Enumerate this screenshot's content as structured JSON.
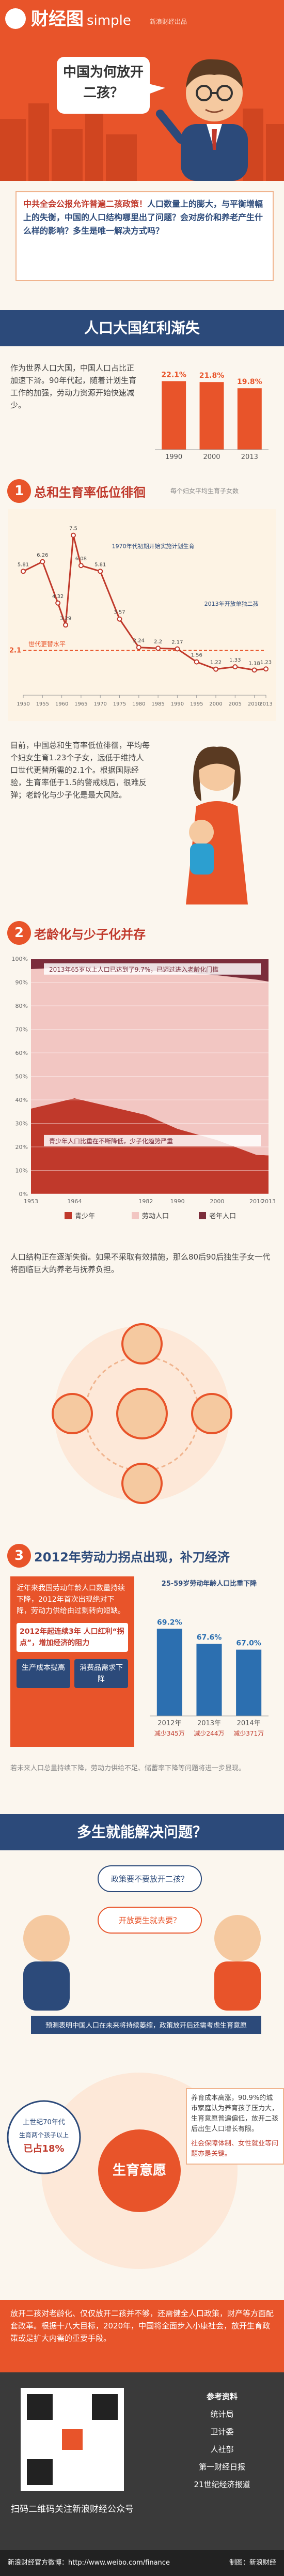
{
  "header": {
    "logo": "财经图",
    "logo_suffix": "simple",
    "producer": "新浪财经出品",
    "bubble": "中国为何放开二孩？"
  },
  "intro": {
    "lead": "中共全会公报允许普遍二孩政策！",
    "body": "人口数量上的膨大，与平衡增幅上的失衡，中国的人口结构哪里出了问题？会对房价和养老产生什么样的影响？多生是唯一解决方式吗？"
  },
  "banner1": "人口大国红利渐失",
  "share": {
    "text": "作为世界人口大国，中国人口占比正加速下滑。90年代起，随着计划生育工作的加强，劳动力资源开始快速减少。",
    "categories": [
      "1990",
      "2000",
      "2013"
    ],
    "values": [
      22.1,
      21.8,
      19.8
    ],
    "value_labels": [
      "22.1%",
      "21.8%",
      "19.8%"
    ],
    "color": "#e8542a",
    "ylim": [
      0,
      25
    ]
  },
  "section1": {
    "number": "1",
    "title": "总和生育率低位徘徊",
    "note": "每个妇女平均生育子女数"
  },
  "fertility": {
    "x": [
      1950,
      1955,
      1959,
      1961,
      1963,
      1965,
      1970,
      1975,
      1980,
      1985,
      1990,
      1995,
      2000,
      2005,
      2010,
      2013
    ],
    "values": [
      5.81,
      6.26,
      4.32,
      3.29,
      7.5,
      6.08,
      5.81,
      3.57,
      2.24,
      2.2,
      2.17,
      1.56,
      1.22,
      1.33,
      1.18,
      1.23
    ],
    "color": "#c0392b",
    "xlim": [
      1950,
      2013
    ],
    "ylim": [
      0,
      8
    ],
    "xticks": [
      1950,
      1955,
      1960,
      1965,
      1970,
      1975,
      1980,
      1985,
      1990,
      1995,
      2000,
      2005,
      2010,
      2013
    ],
    "replacement": 2.1,
    "replacement_label": "世代更替水平",
    "annotations": [
      "1970年代初期开始实施计划生育",
      "2013年开放单独二孩"
    ]
  },
  "fertility_text": "目前，中国总和生育率低位徘徊，平均每个妇女生育1.23个子女，远低于维持人口世代更替所需的2.1个。根据国际经验，生育率低于1.5的警戒线后，很难反弹；老龄化与少子化是最大风险。",
  "section2": {
    "number": "2",
    "title": "老龄化与少子化并存"
  },
  "age": {
    "x": [
      1953,
      1964,
      1982,
      1990,
      2000,
      2010,
      2013
    ],
    "xlim": [
      1953,
      2013
    ],
    "ylim": [
      0,
      100
    ],
    "yticks": [
      {
        "value": 0,
        "label": "0%"
      },
      {
        "value": 10,
        "label": "10%"
      },
      {
        "value": 20,
        "label": "20%"
      },
      {
        "value": 30,
        "label": "30%"
      },
      {
        "value": 40,
        "label": "40%"
      },
      {
        "value": 50,
        "label": "50%"
      },
      {
        "value": 60,
        "label": "60%"
      },
      {
        "value": 70,
        "label": "70%"
      },
      {
        "value": 80,
        "label": "80%"
      },
      {
        "value": 90,
        "label": "90%"
      },
      {
        "value": 100,
        "label": "100%"
      }
    ],
    "series": [
      {
        "name": "青少年",
        "color": "#c0392b",
        "values": [
          36.3,
          40.7,
          33.6,
          27.7,
          22.9,
          16.6,
          16.4
        ]
      },
      {
        "name": "劳动人口",
        "color": "#f2c6c2",
        "values": [
          59.3,
          55.8,
          61.5,
          66.7,
          70.1,
          74.5,
          73.9
        ]
      },
      {
        "name": "老年人口",
        "color": "#7b2d3b",
        "values": [
          4.4,
          3.5,
          4.9,
          5.6,
          7.0,
          8.9,
          9.7
        ]
      }
    ],
    "annotations": [
      "2013年65岁以上人口已达到了9.7%，已迈过进入老龄化门槛",
      "青少年人口比重在不断降低，少子化趋势严重"
    ]
  },
  "age_text": "人口结构正在逐渐失衡。如果不采取有效措施，那么80后90后独生子女一代将面临巨大的养老与抚养负担。",
  "section3": {
    "number": "3",
    "title": "2012年劳动力拐点出现，补刀经济"
  },
  "labor": {
    "text": "近年来我国劳动年龄人口数量持续下降，2012年首次出现绝对下降，劳动力供给由过剩转向短缺。",
    "highlight": "2012年起连续3年 人口红利“拐点”，增加经济的阻力",
    "effects": [
      "生产成本提高",
      "消费品需求下降"
    ],
    "subtitle": "25-59岁劳动年龄人口比重下降",
    "categories": [
      "2012年",
      "2013年",
      "2014年"
    ],
    "values": [
      69.2,
      67.6,
      67.0
    ],
    "value_labels": [
      "69.2%",
      "67.6%",
      "67.0%"
    ],
    "changes": [
      "减少345万",
      "减少244万",
      "减少371万"
    ],
    "color": "#2c6fb0",
    "ylim": [
      60,
      72
    ]
  },
  "labor_note": "若未来人口总量持续下降，劳动力供给不足、储蓄率下降等问题将进一步显现。",
  "banner2": "多生就能解决问题？",
  "debate": {
    "bubbles": [
      "政策要不要放开二孩？",
      "开放要生就去要？"
    ],
    "caption": "预测表明中国人口在未来将持续萎缩，政策放开后还需考虑生育意愿"
  },
  "will": {
    "left": [
      "上世纪70年代",
      "生育两个孩子以上",
      "已占18%"
    ],
    "center": "生育意愿",
    "right": "养育成本高涨，90.9%的城市家庭认为养育孩子压力大，生育意愿普遍偏低，放开二孩后出生人口增长有限。",
    "right_note": "社会保障体制、女性就业等问题亦是关键。"
  },
  "conclusion": "放开二孩对老龄化、仅仅放开二孩并不够，还需健全人口政策，财产等方面配套改革。根据十八大目标，2020年，中国将全面步入小康社会，放开生育政策或是扩大内需的重要手段。",
  "footer": {
    "qr_text": "扫码二维码关注新浪财经公众号",
    "sources_title": "参考资料",
    "sources": [
      "统计局",
      "卫计委",
      "人社部",
      "第一财经日报",
      "21世纪经济报道"
    ],
    "weibo": "新浪财经官方微博：http://www.weibo.com/finance",
    "credit": "制图：新浪财经"
  }
}
